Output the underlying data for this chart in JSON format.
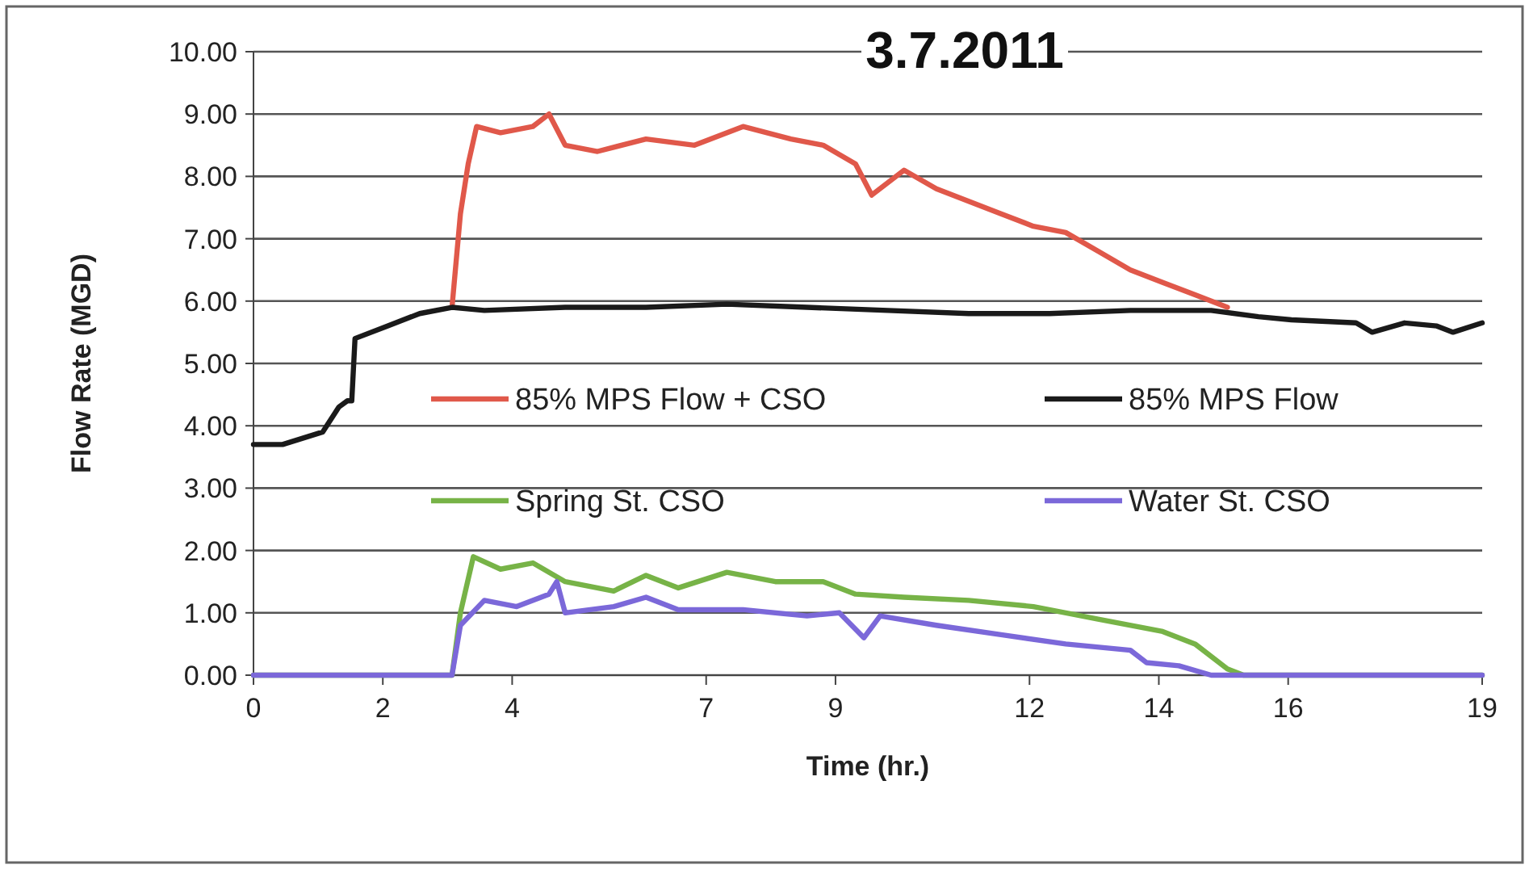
{
  "chart_data": {
    "type": "line",
    "title": "3.7.2011",
    "xlabel": "Time (hr.)",
    "ylabel": "Flow Rate (MGD)",
    "xlim": [
      0,
      19
    ],
    "xticks": [
      0,
      2,
      4,
      7,
      9,
      12,
      14,
      16,
      19
    ],
    "ylim": [
      0,
      10
    ],
    "yticks": [
      {
        "value": 0,
        "label": "0.00"
      },
      {
        "value": 1,
        "label": "1.00"
      },
      {
        "value": 2,
        "label": "2.00"
      },
      {
        "value": 3,
        "label": "3.00"
      },
      {
        "value": 4,
        "label": "4.00"
      },
      {
        "value": 5,
        "label": "5.00"
      },
      {
        "value": 6,
        "label": "6.00"
      },
      {
        "value": 7,
        "label": "7.00"
      },
      {
        "value": 8,
        "label": "8.00"
      },
      {
        "value": 9,
        "label": "9.00"
      },
      {
        "value": 10,
        "label": "10.00"
      }
    ],
    "grid": "y",
    "legend": "center",
    "marker": "none",
    "line_style": "solid",
    "series": [
      {
        "name": "85% MPS Flow + CSO",
        "color": "#e0584a",
        "x": [
          3.07,
          3.2,
          3.32,
          3.45,
          3.82,
          4.32,
          4.57,
          4.82,
          5.32,
          6.07,
          6.82,
          7.57,
          8.31,
          8.81,
          9.31,
          9.56,
          10.06,
          10.56,
          11.06,
          11.56,
          12.06,
          12.56,
          13.06,
          13.56,
          14.06,
          14.56,
          15.06
        ],
        "values": [
          5.9,
          7.4,
          8.2,
          8.8,
          8.7,
          8.8,
          9.0,
          8.5,
          8.4,
          8.6,
          8.5,
          8.8,
          8.6,
          8.5,
          8.2,
          7.7,
          8.1,
          7.8,
          7.6,
          7.4,
          7.2,
          7.1,
          6.8,
          6.5,
          6.3,
          6.1,
          5.9
        ]
      },
      {
        "name": "85% MPS Flow",
        "color": "#1a1a1a",
        "x": [
          0,
          0.45,
          1.07,
          1.32,
          1.45,
          1.52,
          1.57,
          2.07,
          2.57,
          3.07,
          3.57,
          4.82,
          6.07,
          7.32,
          8.56,
          9.81,
          11.06,
          12.31,
          13.56,
          14.81,
          15.54,
          16.05,
          17.05,
          17.3,
          17.8,
          18.3,
          18.55,
          19
        ],
        "values": [
          3.7,
          3.7,
          3.9,
          4.3,
          4.4,
          4.4,
          5.4,
          5.6,
          5.8,
          5.9,
          5.85,
          5.9,
          5.9,
          5.95,
          5.9,
          5.85,
          5.8,
          5.8,
          5.85,
          5.85,
          5.75,
          5.7,
          5.65,
          5.5,
          5.65,
          5.6,
          5.5,
          5.65
        ]
      },
      {
        "name": "Spring St. CSO",
        "color": "#77b347",
        "x": [
          0,
          3.07,
          3.2,
          3.4,
          3.82,
          4.32,
          4.82,
          5.57,
          6.07,
          6.57,
          7.32,
          8.07,
          8.81,
          9.31,
          10.06,
          11.06,
          12.06,
          13.06,
          14.06,
          14.56,
          15.06,
          15.31,
          19
        ],
        "values": [
          0,
          0,
          1.0,
          1.9,
          1.7,
          1.8,
          1.5,
          1.35,
          1.6,
          1.4,
          1.65,
          1.5,
          1.5,
          1.3,
          1.25,
          1.2,
          1.1,
          0.9,
          0.7,
          0.5,
          0.1,
          0,
          0
        ]
      },
      {
        "name": "Water St. CSO",
        "color": "#7b68d9",
        "x": [
          0,
          3.07,
          3.2,
          3.57,
          4.07,
          4.57,
          4.69,
          4.82,
          5.57,
          6.07,
          6.57,
          7.57,
          8.56,
          9.06,
          9.44,
          9.69,
          10.56,
          11.56,
          12.56,
          13.56,
          13.81,
          14.31,
          14.81,
          19
        ],
        "values": [
          0,
          0,
          0.8,
          1.2,
          1.1,
          1.3,
          1.5,
          1.0,
          1.1,
          1.25,
          1.05,
          1.05,
          0.95,
          1.0,
          0.6,
          0.95,
          0.8,
          0.65,
          0.5,
          0.4,
          0.2,
          0.15,
          0,
          0
        ]
      }
    ]
  }
}
